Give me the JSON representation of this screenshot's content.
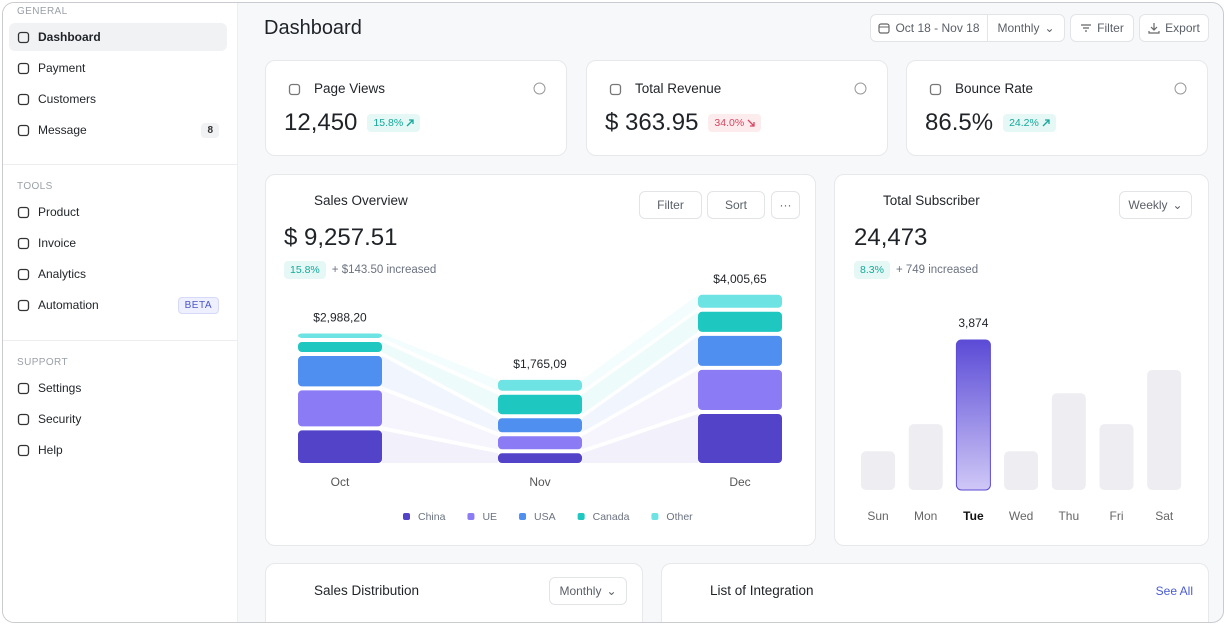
{
  "sidebar": {
    "sections": [
      {
        "title": "GENERAL",
        "items": [
          {
            "label": "Dashboard",
            "active": true
          },
          {
            "label": "Payment"
          },
          {
            "label": "Customers"
          },
          {
            "label": "Message",
            "badge": "8"
          }
        ]
      },
      {
        "title": "TOOLS",
        "items": [
          {
            "label": "Product"
          },
          {
            "label": "Invoice"
          },
          {
            "label": "Analytics"
          },
          {
            "label": "Automation",
            "badge": "BETA"
          }
        ]
      },
      {
        "title": "SUPPORT",
        "items": [
          {
            "label": "Settings"
          },
          {
            "label": "Security"
          },
          {
            "label": "Help"
          }
        ]
      }
    ]
  },
  "header": {
    "title": "Dashboard",
    "date_range": "Oct 18 - Nov 18",
    "period": "Monthly",
    "filter": "Filter",
    "export": "Export"
  },
  "kpis": [
    {
      "title": "Page Views",
      "value": "12,450",
      "change": "15.8%",
      "trend": "up"
    },
    {
      "title": "Total Revenue",
      "value": "$ 363.95",
      "change": "34.0%",
      "trend": "down"
    },
    {
      "title": "Bounce Rate",
      "value": "86.5%",
      "change": "24.2%",
      "trend": "up"
    }
  ],
  "sales_overview": {
    "title": "Sales Overview",
    "filter": "Filter",
    "sort": "Sort",
    "more": "···",
    "value": "$ 9,257.51",
    "change": "15.8%",
    "note": "+ $143.50 increased",
    "chart": {
      "type": "bar",
      "stacked": true,
      "categories": [
        "Oct",
        "Nov",
        "Dec"
      ],
      "series": [
        {
          "name": "China",
          "color": "#5243c9",
          "values": [
            858,
            256,
            1291
          ]
        },
        {
          "name": "UE",
          "color": "#8b7cf6",
          "values": [
            947,
            342,
            1054
          ]
        },
        {
          "name": "USA",
          "color": "#4f8ff0",
          "values": [
            799,
            370,
            791
          ]
        },
        {
          "name": "Canada",
          "color": "#1ec8c0",
          "values": [
            266,
            513,
            527
          ]
        },
        {
          "name": "Other",
          "color": "#6ee3e3",
          "values": [
            118,
            284,
            343
          ]
        }
      ],
      "totals": [
        2988.2,
        1765.09,
        4005.65
      ],
      "total_labels": [
        "$2,988,20",
        "$1,765,09",
        "$4,005,65"
      ]
    }
  },
  "subscriber": {
    "title": "Total Subscriber",
    "period": "Weekly",
    "value": "24,473",
    "change": "8.3%",
    "note": "+ 749 increased",
    "chart": {
      "type": "bar",
      "categories": [
        "Sun",
        "Mon",
        "Tue",
        "Wed",
        "Thu",
        "Fri",
        "Sat"
      ],
      "values": [
        1000,
        1700,
        3874,
        1000,
        2500,
        1700,
        3100
      ],
      "value_labels": [
        null,
        null,
        "3,874",
        null,
        null,
        null,
        null
      ],
      "highlight": "Tue",
      "color": "#ededf2",
      "highlight_color": "#5b4bd6"
    }
  },
  "bottom": {
    "distribution": {
      "title": "Sales Distribution",
      "period": "Monthly"
    },
    "integration": {
      "title": "List of Integration",
      "link": "See All"
    }
  }
}
